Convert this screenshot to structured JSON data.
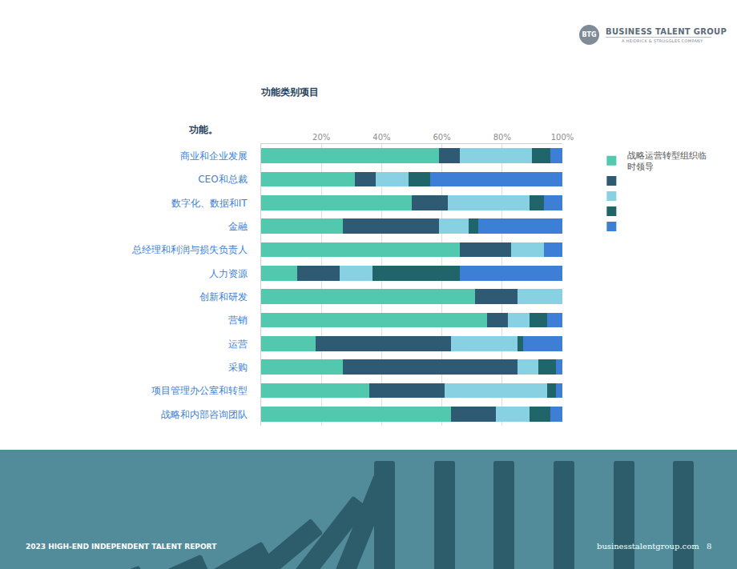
{
  "header": {
    "logo": "BTG",
    "brand": "BUSINESS TALENT GROUP",
    "brand_sub": "A HEIDRICK & STRUGGLES COMPANY"
  },
  "footer": {
    "report": "2023 HIGH-END INDEPENDENT TALENT REPORT",
    "site": "businesstalentgroup.com",
    "page": "8"
  },
  "chart_data": {
    "type": "bar",
    "title": "功能类别项目",
    "ylabel": "功能。",
    "orientation": "horizontal",
    "stacked": true,
    "grid": true,
    "legend": "right",
    "xlim": [
      0,
      100
    ],
    "xticks": [
      {
        "value": 20,
        "label": "20%"
      },
      {
        "value": 40,
        "label": "40%"
      },
      {
        "value": 60,
        "label": "60%"
      },
      {
        "value": 80,
        "label": "80%"
      },
      {
        "value": 100,
        "label": "100%"
      }
    ],
    "categories": [
      "商业和企业发展",
      "CEO和总裁",
      "数字化、数据和IT",
      "金融",
      "总经理和利润与损失负责人",
      "人力资源",
      "创新和研发",
      "营销",
      "运营",
      "采购",
      "项目管理办公室和转型",
      "战略和内部咨询团队"
    ],
    "series": [
      {
        "name": "战略运营转型组织临时领导",
        "color": "#52c9ae",
        "values": [
          59,
          31,
          50,
          27,
          66,
          12,
          71,
          75,
          18,
          27,
          36,
          63
        ]
      },
      {
        "name": null,
        "color": "#2f5a73",
        "values": [
          7,
          7,
          12,
          32,
          17,
          14,
          14,
          7,
          45,
          58,
          25,
          15
        ]
      },
      {
        "name": null,
        "color": "#87d1e2",
        "values": [
          24,
          11,
          27,
          10,
          11,
          11,
          15,
          7,
          22,
          7,
          34,
          11
        ]
      },
      {
        "name": null,
        "color": "#1f6569",
        "values": [
          6,
          7,
          5,
          3,
          0,
          29,
          0,
          6,
          2,
          6,
          3,
          7
        ]
      },
      {
        "name": null,
        "color": "#3d7fd6",
        "values": [
          4,
          44,
          6,
          28,
          6,
          34,
          0,
          5,
          13,
          2,
          2,
          4
        ]
      }
    ]
  }
}
